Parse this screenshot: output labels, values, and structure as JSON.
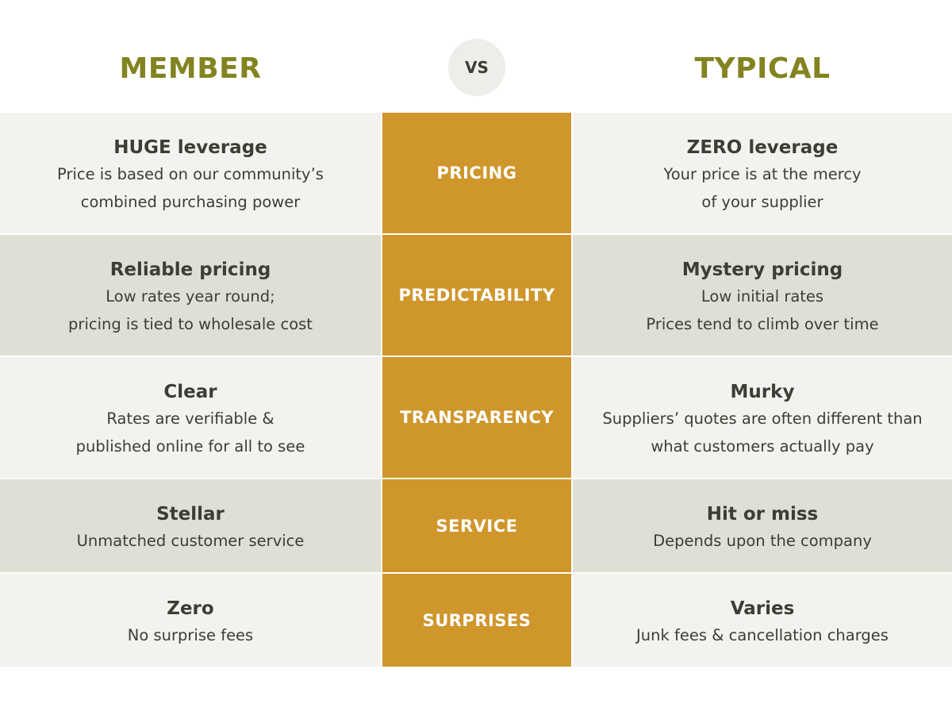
{
  "header": {
    "left": "MEMBER",
    "center": "VS",
    "right": "TYPICAL"
  },
  "rows": [
    {
      "category": "PRICING",
      "member": {
        "title": "HUGE leverage",
        "lines": [
          "Price is based on our community’s",
          "combined purchasing power"
        ]
      },
      "typical": {
        "title": "ZERO leverage",
        "lines": [
          "Your price is at the mercy",
          "of your supplier"
        ]
      }
    },
    {
      "category": "PREDICTABILITY",
      "member": {
        "title": "Reliable pricing",
        "lines": [
          "Low rates year round;",
          "pricing is tied to wholesale cost"
        ]
      },
      "typical": {
        "title": "Mystery pricing",
        "lines": [
          "Low initial rates",
          "Prices tend to climb over time"
        ]
      }
    },
    {
      "category": "TRANSPARENCY",
      "member": {
        "title": "Clear",
        "lines": [
          "Rates are verifiable &",
          "published online for all to see"
        ]
      },
      "typical": {
        "title": "Murky",
        "lines": [
          "Suppliers’ quotes are often different than",
          "what customers actually pay"
        ]
      }
    },
    {
      "category": "SERVICE",
      "member": {
        "title": "Stellar",
        "lines": [
          "Unmatched customer service"
        ]
      },
      "typical": {
        "title": "Hit or miss",
        "lines": [
          "Depends upon the company"
        ]
      }
    },
    {
      "category": "SURPRISES",
      "member": {
        "title": "Zero",
        "lines": [
          "No surprise fees"
        ]
      },
      "typical": {
        "title": "Varies",
        "lines": [
          "Junk fees & cancellation charges"
        ]
      }
    }
  ]
}
